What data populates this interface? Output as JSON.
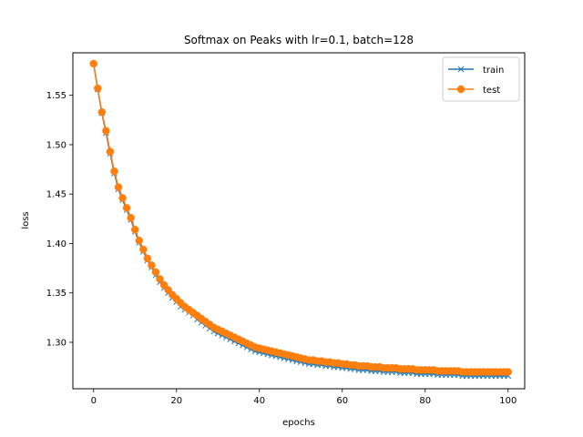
{
  "chart_data": {
    "type": "line",
    "title": "Softmax on Peaks with lr=0.1, batch=128",
    "xlabel": "epochs",
    "ylabel": "loss",
    "xlim": [
      -5,
      104
    ],
    "ylim": [
      1.253,
      1.593
    ],
    "x_ticks": [
      0,
      20,
      40,
      60,
      80,
      100
    ],
    "y_ticks": [
      1.3,
      1.35,
      1.4,
      1.45,
      1.5,
      1.55
    ],
    "grid": false,
    "legend": "top-right",
    "x_start": 0,
    "series": [
      {
        "name": "train",
        "color": "#1f77b4",
        "marker": "x",
        "values": [
          1.582,
          1.556,
          1.532,
          1.512,
          1.491,
          1.471,
          1.455,
          1.444,
          1.434,
          1.424,
          1.412,
          1.401,
          1.392,
          1.383,
          1.376,
          1.368,
          1.361,
          1.355,
          1.35,
          1.345,
          1.341,
          1.336,
          1.333,
          1.33,
          1.327,
          1.323,
          1.32,
          1.317,
          1.314,
          1.311,
          1.309,
          1.307,
          1.305,
          1.303,
          1.301,
          1.299,
          1.297,
          1.295,
          1.293,
          1.291,
          1.29,
          1.289,
          1.288,
          1.287,
          1.286,
          1.285,
          1.284,
          1.283,
          1.282,
          1.281,
          1.28,
          1.279,
          1.278,
          1.278,
          1.277,
          1.277,
          1.276,
          1.276,
          1.275,
          1.275,
          1.274,
          1.274,
          1.273,
          1.273,
          1.272,
          1.272,
          1.272,
          1.271,
          1.271,
          1.271,
          1.27,
          1.27,
          1.27,
          1.27,
          1.269,
          1.269,
          1.269,
          1.269,
          1.268,
          1.268,
          1.268,
          1.268,
          1.268,
          1.267,
          1.267,
          1.267,
          1.267,
          1.267,
          1.267,
          1.266,
          1.266,
          1.266,
          1.266,
          1.266,
          1.266,
          1.266,
          1.266,
          1.266,
          1.266,
          1.266,
          1.266
        ]
      },
      {
        "name": "test",
        "color": "#ff7f0e",
        "marker": "o",
        "values": [
          1.582,
          1.557,
          1.533,
          1.514,
          1.493,
          1.473,
          1.457,
          1.446,
          1.436,
          1.426,
          1.414,
          1.403,
          1.394,
          1.385,
          1.378,
          1.371,
          1.364,
          1.358,
          1.353,
          1.348,
          1.344,
          1.34,
          1.336,
          1.333,
          1.33,
          1.327,
          1.324,
          1.321,
          1.318,
          1.315,
          1.313,
          1.311,
          1.309,
          1.307,
          1.305,
          1.303,
          1.301,
          1.299,
          1.297,
          1.295,
          1.294,
          1.293,
          1.292,
          1.291,
          1.29,
          1.289,
          1.288,
          1.287,
          1.286,
          1.285,
          1.284,
          1.283,
          1.282,
          1.282,
          1.281,
          1.281,
          1.28,
          1.28,
          1.279,
          1.279,
          1.278,
          1.278,
          1.277,
          1.277,
          1.276,
          1.276,
          1.276,
          1.275,
          1.275,
          1.275,
          1.274,
          1.274,
          1.274,
          1.274,
          1.273,
          1.273,
          1.273,
          1.273,
          1.272,
          1.272,
          1.272,
          1.272,
          1.272,
          1.271,
          1.271,
          1.271,
          1.271,
          1.271,
          1.271,
          1.27,
          1.27,
          1.27,
          1.27,
          1.27,
          1.27,
          1.27,
          1.27,
          1.27,
          1.27,
          1.27,
          1.27
        ]
      }
    ]
  }
}
